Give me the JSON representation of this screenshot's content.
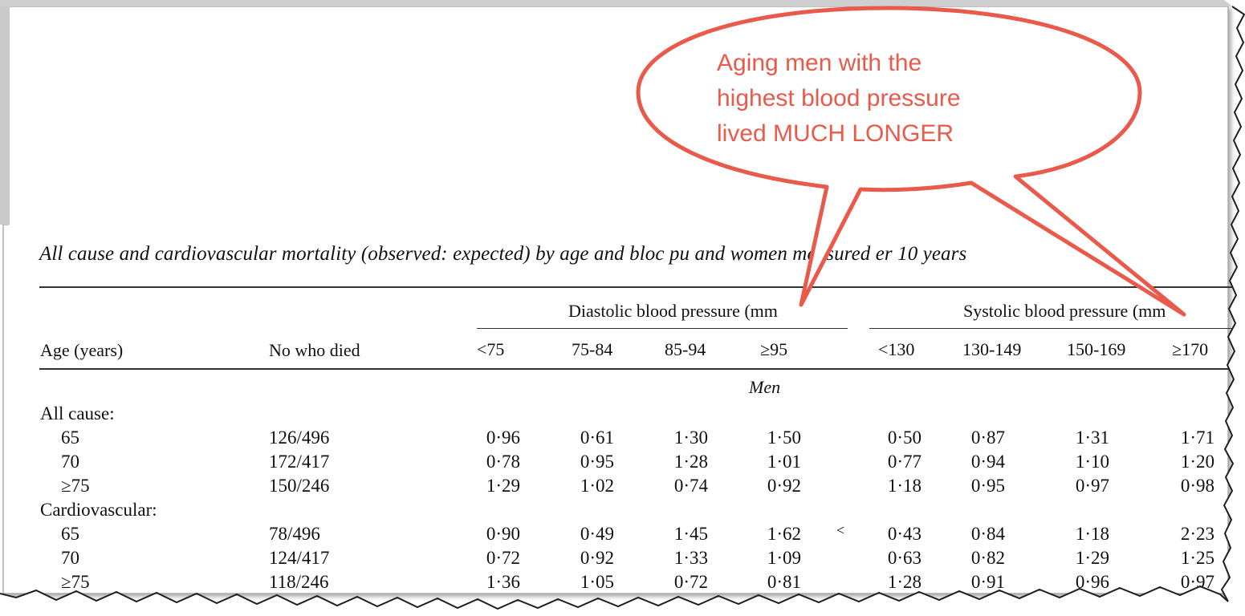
{
  "callout": {
    "lines": [
      "Aging men with the",
      "highest blood pressure",
      "lived MUCH LONGER"
    ],
    "color": "#ea5a4a"
  },
  "table": {
    "caption": "All cause and cardiovascular mortality (observed: expected) by age and bloc  pu and women measured    er 10 years",
    "diastolic_heading": "Diastolic blood pressure (mm",
    "systolic_heading": "Systolic blood pressure (mm",
    "col_age": "Age (years)",
    "col_died": "No who died",
    "diastolic_cols": [
      "<75",
      "75-84",
      "85-94",
      "≥95"
    ],
    "systolic_cols": [
      "<130",
      "130-149",
      "150-169",
      "≥170"
    ],
    "section": "Men",
    "stray_mark": "<",
    "groups": [
      {
        "label": "All cause:",
        "rows": [
          {
            "age": "65",
            "died": "126/496",
            "diastolic": [
              "0·96",
              "0·61",
              "1·30",
              "1·50"
            ],
            "systolic": [
              "0·50",
              "0·87",
              "1·31",
              "1·71"
            ]
          },
          {
            "age": "70",
            "died": "172/417",
            "diastolic": [
              "0·78",
              "0·95",
              "1·28",
              "1·01"
            ],
            "systolic": [
              "0·77",
              "0·94",
              "1·10",
              "1·20"
            ]
          },
          {
            "age": "≥75",
            "died": "150/246",
            "diastolic": [
              "1·29",
              "1·02",
              "0·74",
              "0·92"
            ],
            "systolic": [
              "1·18",
              "0·95",
              "0·97",
              "0·98"
            ]
          }
        ]
      },
      {
        "label": "Cardiovascular:",
        "rows": [
          {
            "age": "65",
            "died": "78/496",
            "diastolic": [
              "0·90",
              "0·49",
              "1·45",
              "1·62"
            ],
            "systolic": [
              "0·43",
              "0·84",
              "1·18",
              "2·23"
            ]
          },
          {
            "age": "70",
            "died": "124/417",
            "diastolic": [
              "0·72",
              "0·92",
              "1·33",
              "1·09"
            ],
            "systolic": [
              "0·63",
              "0·82",
              "1·29",
              "1·25"
            ]
          },
          {
            "age": "≥75",
            "died": "118/246",
            "diastolic": [
              "1·36",
              "1·05",
              "0·72",
              "0·81"
            ],
            "systolic": [
              "1·28",
              "0·91",
              "0·96",
              "0·97"
            ]
          }
        ]
      }
    ]
  }
}
